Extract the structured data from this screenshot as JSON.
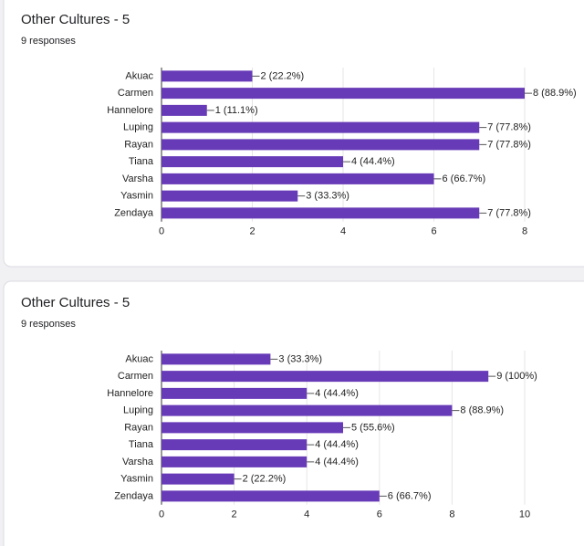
{
  "chart_data": [
    {
      "type": "bar",
      "orientation": "horizontal",
      "title": "Other Cultures - 5",
      "subtitle": "9 responses",
      "categories": [
        "Akuac",
        "Carmen",
        "Hannelore",
        "Luping",
        "Rayan",
        "Tiana",
        "Varsha",
        "Yasmin",
        "Zendaya"
      ],
      "values": [
        2,
        8,
        1,
        7,
        7,
        4,
        6,
        3,
        7
      ],
      "value_labels": [
        "2 (22.2%)",
        "8 (88.9%)",
        "1 (11.1%)",
        "7 (77.8%)",
        "7 (77.8%)",
        "4 (44.4%)",
        "6 (66.7%)",
        "3 (33.3%)",
        "7 (77.8%)"
      ],
      "color": "#673ab7",
      "xlim": [
        0,
        8
      ],
      "xticks": [
        0,
        2,
        4,
        6,
        8
      ],
      "grid": true
    },
    {
      "type": "bar",
      "orientation": "horizontal",
      "title": "Other Cultures - 5",
      "subtitle": "9 responses",
      "categories": [
        "Akuac",
        "Carmen",
        "Hannelore",
        "Luping",
        "Rayan",
        "Tiana",
        "Varsha",
        "Yasmin",
        "Zendaya"
      ],
      "values": [
        3,
        9,
        4,
        8,
        5,
        4,
        4,
        2,
        6
      ],
      "value_labels": [
        "3 (33.3%)",
        "9 (100%)",
        "4 (44.4%)",
        "8 (88.9%)",
        "5 (55.6%)",
        "4 (44.4%)",
        "4 (44.4%)",
        "2 (22.2%)",
        "6 (66.7%)"
      ],
      "color": "#673ab7",
      "xlim": [
        0,
        10
      ],
      "xticks": [
        0,
        2,
        4,
        6,
        8,
        10
      ],
      "grid": true
    }
  ]
}
